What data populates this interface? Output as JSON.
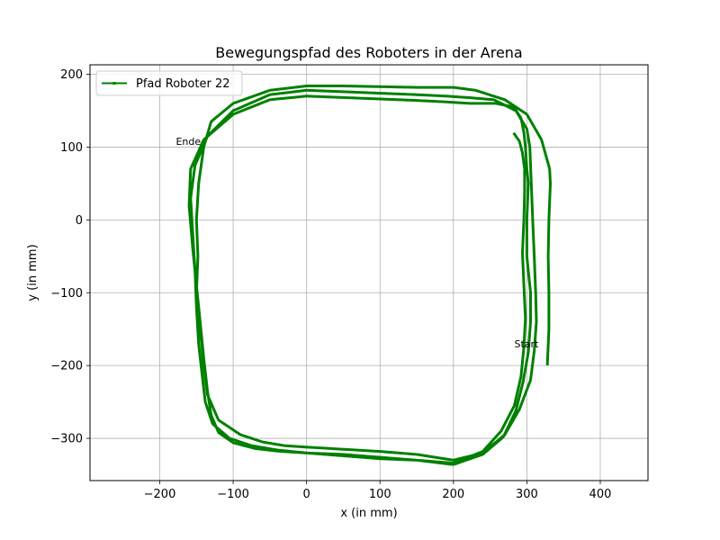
{
  "chart_data": {
    "type": "line",
    "title": "Bewegungspfad des Roboters in der Arena",
    "xlabel": "x (in mm)",
    "ylabel": "y (in mm)",
    "xlim": [
      -295,
      465
    ],
    "ylim": [
      -358,
      213
    ],
    "xticks": [
      -200,
      -100,
      0,
      100,
      200,
      300,
      400
    ],
    "yticks": [
      -300,
      -200,
      -100,
      0,
      100,
      200
    ],
    "grid": true,
    "legend_position": "top-left",
    "color": "#008000",
    "series": [
      {
        "name": "Pfad Roboter 22",
        "x": [
          328,
          330,
          330,
          329,
          330,
          332,
          331,
          320,
          300,
          270,
          230,
          200,
          150,
          100,
          50,
          0,
          -50,
          -100,
          -130,
          -140,
          -147,
          -150,
          -148,
          -150,
          -145,
          -140,
          -135,
          -120,
          -90,
          -60,
          -30,
          0,
          50,
          100,
          150,
          200,
          240,
          270,
          290,
          305,
          310,
          313,
          312,
          310,
          308,
          306,
          304,
          300,
          285,
          255,
          220,
          190,
          150,
          100,
          50,
          0,
          -50,
          -100,
          -135,
          -152,
          -158,
          -155,
          -152,
          -150,
          -147,
          -142,
          -138,
          -128,
          -105,
          -75,
          -40,
          0,
          50,
          100,
          150,
          200,
          240,
          268,
          285,
          295,
          302,
          305,
          305,
          300,
          300,
          302,
          300,
          298,
          296,
          292,
          282,
          258,
          222,
          192,
          150,
          100,
          50,
          0,
          -50,
          -100,
          -140,
          -158,
          -160,
          -155,
          -150,
          -145,
          -140,
          -135,
          -130,
          -120,
          -100,
          -70,
          -35,
          0,
          50,
          100,
          150,
          200,
          240,
          265,
          283,
          292,
          296,
          298,
          296,
          294,
          296,
          297,
          297,
          294,
          290,
          283
        ],
        "y": [
          -198,
          -150,
          -100,
          -50,
          0,
          50,
          70,
          110,
          145,
          165,
          178,
          182,
          182,
          183,
          184,
          184,
          178,
          160,
          135,
          100,
          50,
          0,
          -50,
          -100,
          -150,
          -200,
          -240,
          -275,
          -295,
          -305,
          -310,
          -312,
          -315,
          -318,
          -322,
          -330,
          -320,
          -295,
          -260,
          -220,
          -180,
          -140,
          -100,
          -50,
          0,
          50,
          100,
          125,
          150,
          165,
          168,
          170,
          172,
          174,
          176,
          178,
          172,
          150,
          115,
          75,
          30,
          -20,
          -70,
          -120,
          -170,
          -215,
          -250,
          -280,
          -300,
          -310,
          -316,
          -320,
          -324,
          -328,
          -330,
          -336,
          -322,
          -298,
          -262,
          -222,
          -182,
          -140,
          -100,
          -50,
          0,
          50,
          70,
          100,
          120,
          140,
          155,
          160,
          160,
          162,
          164,
          166,
          168,
          170,
          165,
          145,
          110,
          70,
          20,
          -40,
          -90,
          -140,
          -190,
          -235,
          -268,
          -292,
          -306,
          -314,
          -318,
          -320,
          -322,
          -326,
          -330,
          -334,
          -318,
          -290,
          -255,
          -215,
          -175,
          -135,
          -90,
          -45,
          0,
          40,
          70,
          92,
          108,
          118
        ]
      }
    ],
    "annotations": [
      {
        "text": "Start",
        "x": 283,
        "y": -175
      },
      {
        "text": "Ende",
        "x": -178,
        "y": 103
      }
    ]
  }
}
